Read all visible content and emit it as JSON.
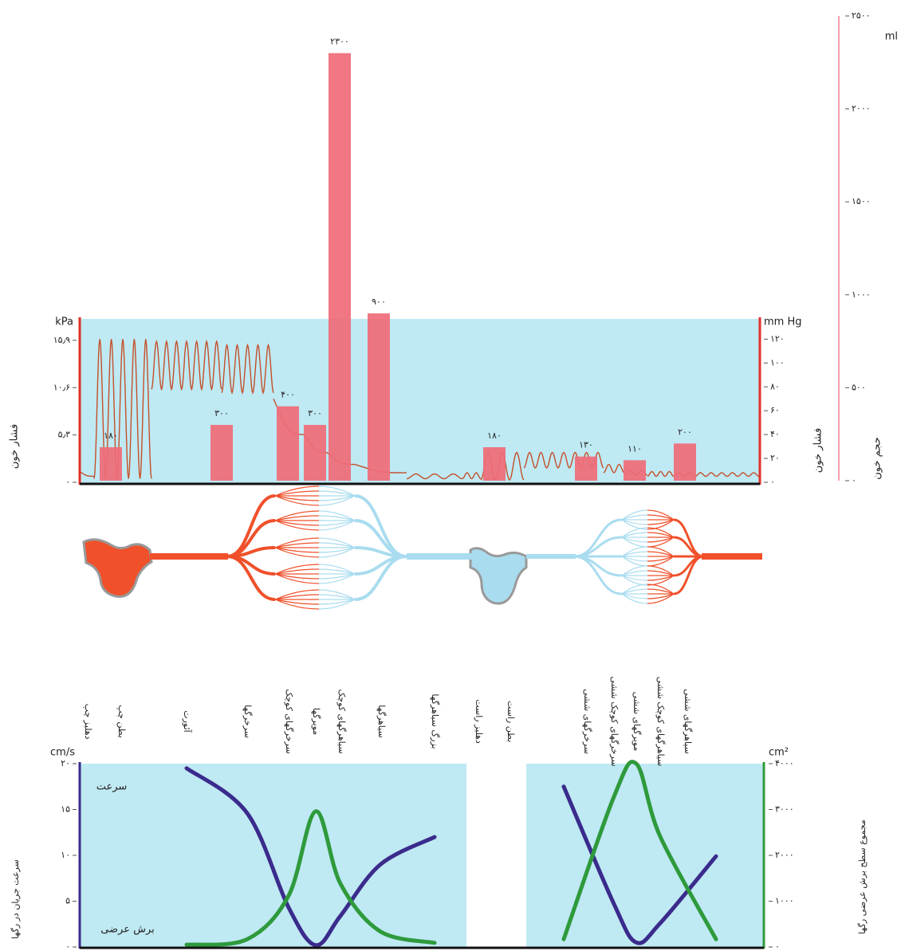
{
  "chart_data": [
    {
      "type": "bar",
      "categories": [
        "دهلیز چپ",
        "بطن چپ",
        "آئورت",
        "سرخرگها",
        "سرخرگهای کوچک",
        "مویرگها",
        "سیاهرگهای کوچک",
        "سیاهرگها",
        "بزرگ سیاهرگها",
        "دهلیز راست",
        "بطن راست",
        "سرخرگهای ششی",
        "سرخرگهای کوچک ششی",
        "مویرگهای ششی",
        "سیاهرگهای کوچک ششی",
        "سیاهرگهای ششی"
      ],
      "series": [
        {
          "color": "#ef6b78",
          "axis": "y2",
          "values": [
            null,
            180,
            null,
            300,
            400,
            300,
            2300,
            900,
            null,
            null,
            180,
            130,
            null,
            110,
            null,
            200
          ],
          "value_labels": [
            null,
            "۱۸۰",
            null,
            "۳۰۰",
            "۴۰۰",
            "۳۰۰",
            "۲۳۰۰",
            "۹۰۰",
            null,
            null,
            "۱۸۰",
            "۱۳۰",
            null,
            "۱۱۰",
            null,
            "۲۰۰"
          ]
        }
      ],
      "pressure": {
        "color": "#c4502a",
        "high": [
          9,
          120,
          118,
          115,
          70,
          40,
          25,
          15,
          7,
          8,
          25,
          25,
          15,
          10,
          9,
          8
        ],
        "low": [
          5,
          3,
          78,
          75,
          40,
          25,
          15,
          8,
          3,
          3,
          2,
          12,
          8,
          6,
          5,
          5
        ]
      },
      "ylabel": "فشار خون",
      "y_unit": "mm Hg",
      "ylim": [
        0,
        137
      ],
      "yticks": [
        {
          "value": 0,
          "label": "۰"
        },
        {
          "value": 20,
          "label": "۲۰"
        },
        {
          "value": 40,
          "label": "۴۰"
        },
        {
          "value": 60,
          "label": "۶۰"
        },
        {
          "value": 80,
          "label": "۸۰"
        },
        {
          "value": 100,
          "label": "۱۰۰"
        },
        {
          "value": 120,
          "label": "۱۲۰"
        }
      ],
      "y3label": "فشار خون",
      "y3_unit": "kPa",
      "y3lim": [
        0,
        18.3
      ],
      "y3ticks": [
        {
          "value": 0,
          "label": "۰"
        },
        {
          "value": 5.3,
          "label": "۵٫۳"
        },
        {
          "value": 10.6,
          "label": "۱۰٫۶"
        },
        {
          "value": 15.9,
          "label": "۱۵٫۹"
        }
      ],
      "y2label": "حجم خون",
      "y2_unit": "ml",
      "y2lim": [
        0,
        2500
      ],
      "y2ticks": [
        {
          "value": 0,
          "label": "۰"
        },
        {
          "value": 500,
          "label": "۵۰۰"
        },
        {
          "value": 1000,
          "label": "۱۰۰۰"
        },
        {
          "value": 1500,
          "label": "۱۵۰۰"
        },
        {
          "value": 2000,
          "label": "۲۰۰۰"
        },
        {
          "value": 2500,
          "label": "۲۵۰۰"
        }
      ],
      "grid": true
    },
    {
      "type": "line",
      "series": [
        {
          "name": "سرعت",
          "color": "#3a2b8c",
          "values": [
            null,
            null,
            19.5,
            14.6,
            4.3,
            0.2,
            3.4,
            9,
            12,
            null,
            null,
            17.5,
            4.7,
            0.5,
            2.6,
            9.9
          ]
        },
        {
          "name": "برش عرضی",
          "color": "#2e9a3c",
          "axis": "y2",
          "values": [
            null,
            null,
            50,
            170,
            1120,
            2960,
            1380,
            340,
            90,
            null,
            null,
            170,
            3280,
            4000,
            2410,
            170
          ]
        }
      ],
      "ylabel": "سرعت جریان در رگها",
      "y_unit": "cm/s",
      "ylim": [
        0,
        20
      ],
      "yticks": [
        {
          "value": 0,
          "label": "۰"
        },
        {
          "value": 5,
          "label": "۵"
        },
        {
          "value": 10,
          "label": "۱۰"
        },
        {
          "value": 15,
          "label": "۱۵"
        },
        {
          "value": 20,
          "label": "۲۰"
        }
      ],
      "y2label": "مجموع سطح برش عرضی رگها",
      "y2_unit": "cm²",
      "y2lim": [
        0,
        4000
      ],
      "y2ticks": [
        {
          "value": 0,
          "label": "۰"
        },
        {
          "value": 1000,
          "label": "۱۰۰۰"
        },
        {
          "value": 2000,
          "label": "۲۰۰۰"
        },
        {
          "value": 3000,
          "label": "۳۰۰۰"
        },
        {
          "value": 4000,
          "label": "۴۰۰۰"
        }
      ]
    }
  ]
}
